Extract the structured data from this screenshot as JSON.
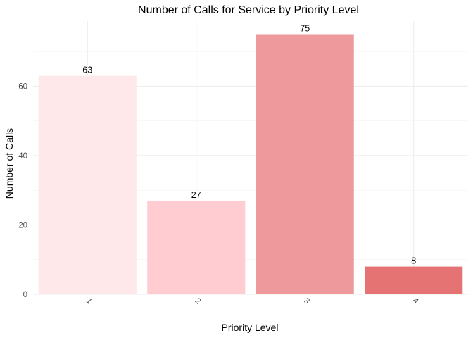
{
  "chart_data": {
    "type": "bar",
    "title": "Number of Calls for Service by Priority Level",
    "xlabel": "Priority Level",
    "ylabel": "Number of Calls",
    "categories": [
      "1",
      "2",
      "3",
      "4"
    ],
    "values": [
      63,
      27,
      75,
      8
    ],
    "colors": [
      "#ffe8ea",
      "#ffccd2",
      "#ee9a9c",
      "#e57373"
    ],
    "data_labels": [
      "63",
      "27",
      "75",
      "8"
    ],
    "yticks": [
      0,
      20,
      40,
      60
    ],
    "ylim": [
      0,
      78.75
    ],
    "grid": true,
    "legend": "none"
  }
}
